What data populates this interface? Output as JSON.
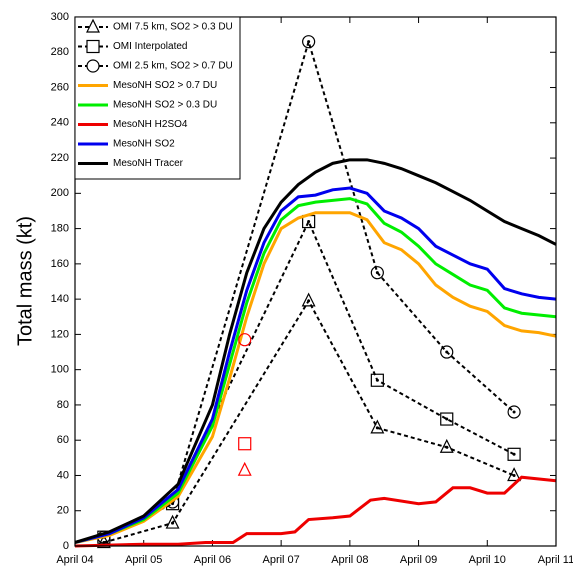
{
  "chart_data": {
    "type": "line",
    "y_label": "Total mass (kt)",
    "xlim": [
      4,
      11
    ],
    "ylim": [
      0,
      300
    ],
    "xticks": [
      {
        "value": 4,
        "label": "April 04"
      },
      {
        "value": 5,
        "label": "April 05"
      },
      {
        "value": 6,
        "label": "April 06"
      },
      {
        "value": 7,
        "label": "April 07"
      },
      {
        "value": 8,
        "label": "April 08"
      },
      {
        "value": 9,
        "label": "April 09"
      },
      {
        "value": 10,
        "label": "April 10"
      },
      {
        "value": 11,
        "label": "April 11"
      }
    ],
    "yticks": [
      0,
      20,
      40,
      60,
      80,
      100,
      120,
      140,
      160,
      180,
      200,
      220,
      240,
      260,
      280,
      300
    ],
    "series": [
      {
        "name": "OMI 7.5 km, SO2 > 0.3 DU",
        "color": "#000000",
        "style": "dashed",
        "marker": "triangle",
        "x": [
          4.42,
          5.42,
          7.4,
          8.4,
          9.41,
          10.39
        ],
        "values": [
          2,
          13,
          139,
          67,
          56,
          40
        ]
      },
      {
        "name": "OMI Interpolated",
        "color": "#000000",
        "style": "dashed",
        "marker": "square",
        "x": [
          4.42,
          5.42,
          7.4,
          8.4,
          9.41,
          10.39
        ],
        "values": [
          5,
          24,
          184,
          94,
          72,
          52
        ]
      },
      {
        "name": "OMI 2.5 km, SO2 > 0.7 DU",
        "color": "#000000",
        "style": "dashed",
        "marker": "circle",
        "x": [
          4.42,
          5.42,
          7.4,
          8.4,
          9.41,
          10.39
        ],
        "values": [
          5,
          25,
          286,
          155,
          110,
          76
        ]
      },
      {
        "name": "MesoNH SO2 > 0.7 DU",
        "color": "#ffa500",
        "style": "solid",
        "x": [
          4,
          4.5,
          5,
          5.5,
          6,
          6.25,
          6.5,
          6.75,
          7,
          7.25,
          7.5,
          8,
          8.25,
          8.5,
          8.75,
          9,
          9.25,
          9.5,
          9.75,
          10,
          10.25,
          10.5,
          10.75,
          11
        ],
        "values": [
          2,
          6,
          14,
          28,
          62,
          95,
          130,
          160,
          180,
          186,
          189,
          189,
          185,
          172,
          168,
          160,
          148,
          141,
          136,
          133,
          125,
          122,
          121,
          119
        ]
      },
      {
        "name": "MesoNH SO2 > 0.3 DU",
        "color": "#00ee00",
        "style": "solid",
        "x": [
          4,
          4.5,
          5,
          5.5,
          6,
          6.25,
          6.5,
          6.75,
          7,
          7.25,
          7.5,
          8,
          8.25,
          8.5,
          8.75,
          9,
          9.25,
          9.5,
          9.75,
          10,
          10.25,
          10.5,
          10.75,
          11
        ],
        "values": [
          2,
          7,
          15,
          30,
          68,
          103,
          138,
          166,
          185,
          193,
          195,
          197,
          194,
          183,
          178,
          170,
          160,
          154,
          148,
          145,
          135,
          132,
          131,
          130
        ]
      },
      {
        "name": "MesoNH H2SO4",
        "color": "#ee0000",
        "style": "solid",
        "x": [
          4,
          5,
          5.5,
          5.9,
          6.3,
          6.5,
          7,
          7.2,
          7.4,
          7.75,
          8,
          8.3,
          8.5,
          9,
          9.25,
          9.5,
          9.75,
          10,
          10.25,
          10.5,
          11
        ],
        "values": [
          0,
          1,
          1,
          2,
          2,
          7,
          7,
          8,
          15,
          16,
          17,
          26,
          27,
          24,
          25,
          33,
          33,
          30,
          30,
          39,
          37
        ]
      },
      {
        "name": "MesoNH SO2",
        "color": "#0000ee",
        "style": "solid",
        "x": [
          4,
          4.5,
          5,
          5.5,
          6,
          6.25,
          6.5,
          6.75,
          7,
          7.25,
          7.5,
          7.75,
          8,
          8.25,
          8.5,
          8.75,
          9,
          9.25,
          9.5,
          9.75,
          10,
          10.25,
          10.5,
          10.75,
          11
        ],
        "values": [
          2,
          7,
          16,
          32,
          72,
          110,
          145,
          172,
          190,
          198,
          199,
          202,
          203,
          200,
          190,
          186,
          180,
          170,
          165,
          160,
          157,
          146,
          143,
          141,
          140
        ]
      },
      {
        "name": "MesoNH Tracer",
        "color": "#000000",
        "style": "solid",
        "x": [
          4,
          4.5,
          5,
          5.5,
          6,
          6.25,
          6.5,
          6.75,
          7,
          7.25,
          7.5,
          7.75,
          8,
          8.25,
          8.5,
          8.75,
          9,
          9.25,
          9.5,
          9.75,
          10,
          10.25,
          10.5,
          10.75,
          11
        ],
        "values": [
          2,
          8,
          17,
          35,
          80,
          120,
          155,
          180,
          195,
          205,
          212,
          217,
          219,
          219,
          217,
          214,
          210,
          206,
          201,
          196,
          190,
          184,
          180,
          176,
          171
        ]
      }
    ],
    "extra_points": {
      "color": "#ff0000",
      "x": [
        6.47,
        6.47,
        6.47
      ],
      "values": [
        117,
        58,
        43
      ],
      "markers": [
        "circle",
        "square",
        "triangle"
      ]
    }
  }
}
